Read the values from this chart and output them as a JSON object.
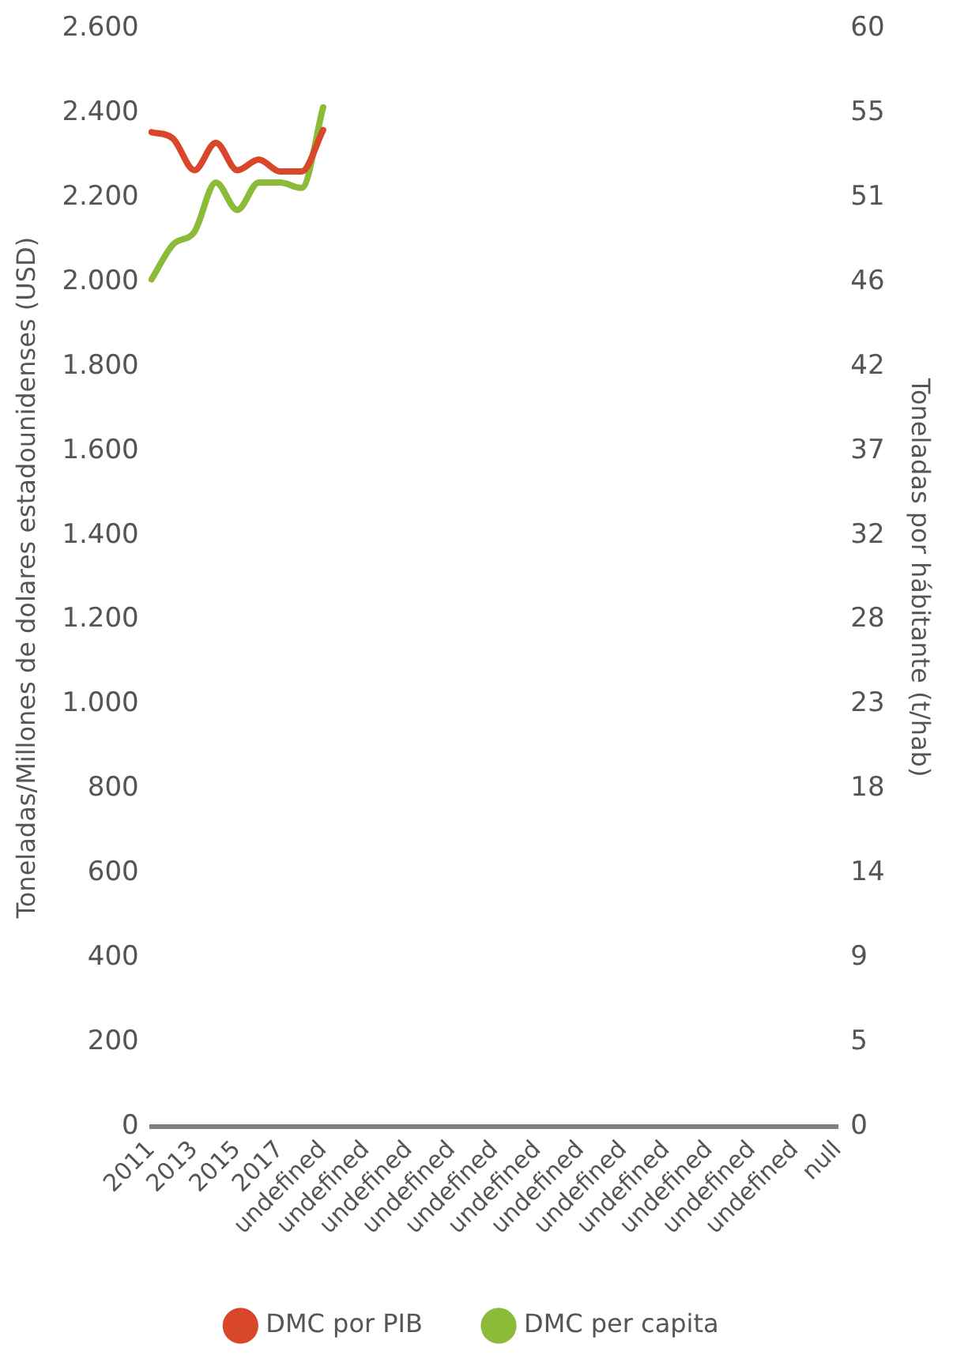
{
  "chart_data": {
    "type": "line",
    "categories": [
      "2011",
      null,
      "2013",
      null,
      "2015",
      null,
      "2017",
      null,
      "undefined",
      null,
      "undefined",
      null,
      "undefined",
      null,
      "undefined",
      null,
      "undefined",
      null,
      "undefined",
      null,
      "undefined",
      null,
      "undefined",
      null,
      "undefined",
      null,
      "undefined",
      null,
      "undefined",
      null,
      "undefined",
      null,
      "null"
    ],
    "series": [
      {
        "name": "DMC por PIB",
        "color": "#d9472b",
        "values": [
          2355,
          2340,
          2265,
          2330,
          2265,
          2290,
          2262,
          2262,
          2360,
          null,
          null,
          null,
          null,
          null,
          null,
          null,
          null,
          null,
          null,
          null,
          null,
          null,
          null,
          null,
          null,
          null,
          null,
          null,
          null,
          null,
          null,
          null,
          null
        ]
      },
      {
        "name": "DMC per capita",
        "color": "#8cbb3a",
        "axis": "y2",
        "values": [
          46.3,
          48.2,
          48.9,
          51.6,
          50.1,
          51.6,
          51.6,
          51.3,
          55.7,
          null,
          null,
          null,
          null,
          null,
          null,
          null,
          null,
          null,
          null,
          null,
          null,
          null,
          null,
          null,
          null,
          null,
          null,
          null,
          null,
          null,
          null,
          null,
          null
        ]
      }
    ],
    "ylabel": "Toneladas/Millones de dolares estadounidenses (USD)",
    "y2label": "Toneladas por hábitante (t/hab)",
    "ylim": [
      0,
      2600
    ],
    "yticks": [
      0,
      {
        "value": 200,
        "label": "200"
      },
      400,
      600,
      800,
      {
        "value": 1000,
        "label": "1.000"
      },
      {
        "value": 1200,
        "label": "1.200"
      },
      {
        "value": 1400,
        "label": "1.400"
      },
      {
        "value": 1600,
        "label": "1.600"
      },
      {
        "value": 1800,
        "label": "1.800"
      },
      {
        "value": 2000,
        "label": "2.000"
      },
      {
        "value": 2200,
        "label": "2.200"
      },
      {
        "value": 2400,
        "label": "2.400"
      },
      {
        "value": 2600,
        "label": "2.600"
      }
    ],
    "y2lim": [
      0,
      60
    ],
    "y2ticks": [
      0,
      {
        "value": 4.615,
        "label": "5"
      },
      {
        "value": 9.231,
        "label": "9"
      },
      {
        "value": 13.846,
        "label": "14"
      },
      {
        "value": 18.462,
        "label": "18"
      },
      {
        "value": 23.077,
        "label": "23"
      },
      {
        "value": 27.692,
        "label": "28"
      },
      {
        "value": 32.308,
        "label": "32"
      },
      {
        "value": 36.923,
        "label": "37"
      },
      {
        "value": 41.538,
        "label": "42"
      },
      {
        "value": 46.154,
        "label": "46"
      },
      {
        "value": 50.769,
        "label": "51"
      },
      {
        "value": 55.385,
        "label": "55"
      },
      60
    ],
    "grid": false,
    "legend": "bottom",
    "marker": "none"
  }
}
